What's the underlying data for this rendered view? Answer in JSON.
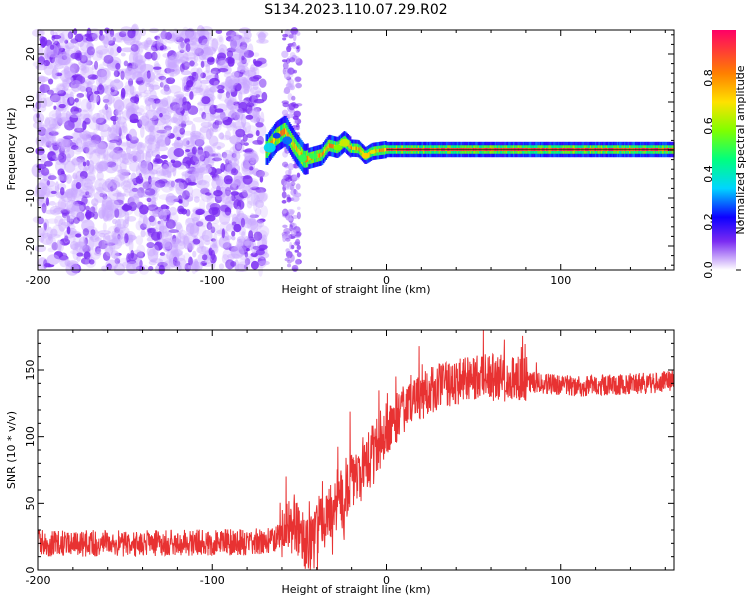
{
  "title": "S134.2023.110.07.29.R02",
  "colors": {
    "snr": "#e83232",
    "scatter": "#7a2bf2",
    "scatter_light": "#c9a7ff"
  },
  "chart_data": [
    {
      "type": "heatmap",
      "xlabel": "Height of straight line (km)",
      "ylabel": "Frequency (Hz)",
      "xlim": [
        -200,
        165
      ],
      "ylim": [
        -25,
        25
      ],
      "x_ticks": [
        -200,
        -100,
        0,
        100
      ],
      "y_ticks": [
        -20,
        -10,
        0,
        10,
        20
      ],
      "colorbar_label": "Normalized spectral amplitude",
      "colorbar_range": [
        0,
        1
      ],
      "colorbar_ticks": [
        0.0,
        0.2,
        0.4,
        0.6,
        0.8
      ],
      "colorbar_stops": [
        {
          "value": 0.0,
          "color": "#ffffff"
        },
        {
          "value": 0.12,
          "color": "#7a2bf2"
        },
        {
          "value": 0.22,
          "color": "#0d00ff"
        },
        {
          "value": 0.34,
          "color": "#00d5ff"
        },
        {
          "value": 0.46,
          "color": "#00ff7f"
        },
        {
          "value": 0.58,
          "color": "#7fff00"
        },
        {
          "value": 0.7,
          "color": "#ffe100"
        },
        {
          "value": 0.82,
          "color": "#ff7f00"
        },
        {
          "value": 1.0,
          "color": "#ff0066"
        }
      ],
      "frequency_track": [
        {
          "x": -68,
          "y": 0.3
        },
        {
          "x": -63,
          "y": 2.8
        },
        {
          "x": -58,
          "y": 4.0
        },
        {
          "x": -53,
          "y": 1.0
        },
        {
          "x": -47,
          "y": -2.0
        },
        {
          "x": -42,
          "y": -1.5
        },
        {
          "x": -37,
          "y": -1.0
        },
        {
          "x": -33,
          "y": 1.0
        },
        {
          "x": -28,
          "y": 0.5
        },
        {
          "x": -24,
          "y": 1.8
        },
        {
          "x": -20,
          "y": 0.4
        },
        {
          "x": -16,
          "y": 0.3
        },
        {
          "x": -12,
          "y": -1.2
        },
        {
          "x": -8,
          "y": -0.3
        },
        {
          "x": 0,
          "y": 0.1
        },
        {
          "x": 40,
          "y": 0.1
        },
        {
          "x": 90,
          "y": 0.1
        },
        {
          "x": 165,
          "y": 0.1
        }
      ]
    },
    {
      "type": "line",
      "xlabel": "Height of straight line (km)",
      "ylabel": "SNR (10 * v/v)",
      "xlim": [
        -200,
        165
      ],
      "ylim": [
        0,
        180
      ],
      "x_ticks": [
        -200,
        -100,
        0,
        100
      ],
      "y_ticks": [
        0,
        50,
        100,
        150
      ],
      "trend": [
        {
          "x": -200,
          "y": 20
        },
        {
          "x": -160,
          "y": 20
        },
        {
          "x": -120,
          "y": 20
        },
        {
          "x": -80,
          "y": 21
        },
        {
          "x": -65,
          "y": 22
        },
        {
          "x": -55,
          "y": 35
        },
        {
          "x": -45,
          "y": 18
        },
        {
          "x": -35,
          "y": 38
        },
        {
          "x": -25,
          "y": 55
        },
        {
          "x": -15,
          "y": 75
        },
        {
          "x": -5,
          "y": 95
        },
        {
          "x": 5,
          "y": 112
        },
        {
          "x": 15,
          "y": 125
        },
        {
          "x": 30,
          "y": 138
        },
        {
          "x": 50,
          "y": 145
        },
        {
          "x": 70,
          "y": 143
        },
        {
          "x": 90,
          "y": 140
        },
        {
          "x": 110,
          "y": 138
        },
        {
          "x": 130,
          "y": 139
        },
        {
          "x": 150,
          "y": 140
        },
        {
          "x": 165,
          "y": 142
        }
      ]
    }
  ]
}
